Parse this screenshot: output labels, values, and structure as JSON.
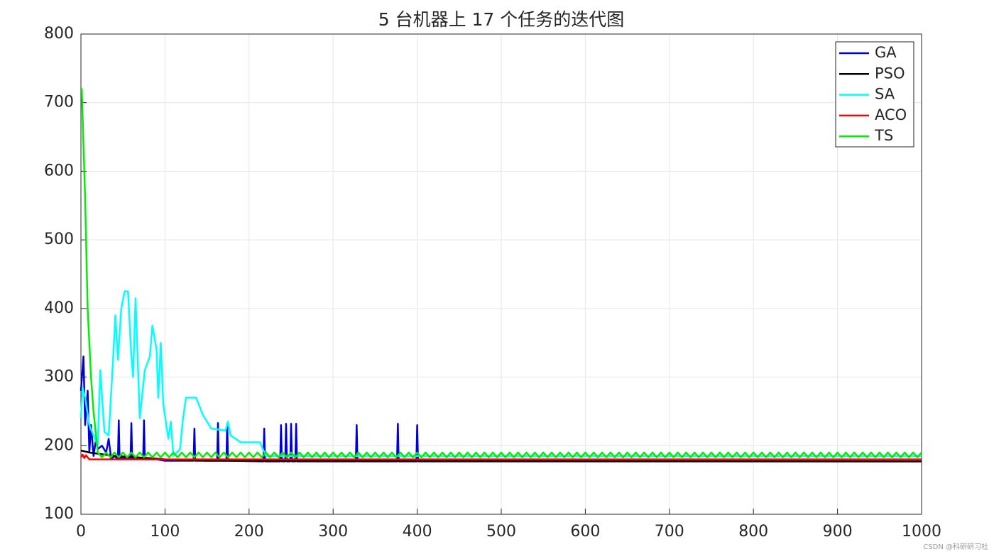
{
  "chart_data": {
    "type": "line",
    "title": "5 台机器上 17 个任务的迭代图",
    "xlim": [
      0,
      1000
    ],
    "xticks": [
      0,
      100,
      200,
      300,
      400,
      500,
      600,
      700,
      800,
      900,
      1000
    ],
    "ylim": [
      100,
      800
    ],
    "yticks": [
      100,
      200,
      300,
      400,
      500,
      600,
      700,
      800
    ],
    "grid": true,
    "legend": "top-right",
    "series": [
      {
        "name": "GA",
        "color": "#0000dd",
        "x": [
          0,
          3,
          5,
          8,
          10,
          12,
          15,
          18,
          20,
          25,
          30,
          33,
          36,
          40,
          44,
          45,
          46,
          55,
          59,
          60,
          61,
          70,
          74,
          75,
          76,
          90,
          100,
          134,
          135,
          136,
          162,
          163,
          164,
          173,
          174,
          175,
          217,
          218,
          219,
          237,
          238,
          239,
          243,
          244,
          245,
          249,
          250,
          251,
          255,
          256,
          257,
          327,
          328,
          329,
          376,
          377,
          378,
          399,
          400,
          401,
          1000
        ],
        "values": [
          280,
          330,
          230,
          280,
          190,
          230,
          185,
          210,
          195,
          200,
          190,
          210,
          180,
          185,
          180,
          237,
          182,
          182,
          180,
          233,
          180,
          182,
          180,
          237,
          180,
          180,
          178,
          178,
          225,
          178,
          178,
          233,
          178,
          178,
          232,
          178,
          177,
          225,
          177,
          177,
          230,
          177,
          177,
          232,
          177,
          177,
          232,
          177,
          177,
          232,
          177,
          177,
          230,
          177,
          177,
          232,
          177,
          177,
          230,
          177,
          177
        ]
      },
      {
        "name": "PSO",
        "color": "#000000",
        "x": [
          0,
          10,
          40,
          80,
          100,
          150,
          1000
        ],
        "values": [
          193,
          190,
          185,
          182,
          180,
          178,
          177
        ]
      },
      {
        "name": "SA",
        "color": "#00ffff",
        "x": [
          0,
          2,
          5,
          10,
          15,
          20,
          23,
          28,
          33,
          38,
          41,
          44,
          48,
          52,
          56,
          60,
          62,
          65,
          70,
          76,
          82,
          85,
          90,
          92,
          95,
          98,
          104,
          107,
          110,
          118,
          121,
          125,
          137,
          145,
          155,
          172,
          175,
          178,
          190,
          213,
          220,
          1000
        ],
        "values": [
          240,
          285,
          270,
          230,
          215,
          200,
          310,
          220,
          215,
          320,
          390,
          325,
          400,
          425,
          425,
          330,
          300,
          415,
          240,
          310,
          330,
          375,
          340,
          270,
          350,
          260,
          210,
          235,
          185,
          195,
          235,
          270,
          270,
          245,
          225,
          222,
          235,
          215,
          205,
          205,
          185,
          185
        ]
      },
      {
        "name": "ACO",
        "color": "#ff0000",
        "x": [
          0,
          2,
          4,
          6,
          10,
          1000
        ],
        "values": [
          183,
          187,
          182,
          186,
          180,
          180
        ]
      },
      {
        "name": "TS",
        "color": "#00ee00",
        "x": [
          0,
          1,
          5,
          8,
          12,
          15,
          20,
          25,
          30,
          35,
          40,
          45,
          50,
          55,
          60,
          65,
          70,
          75,
          80,
          85,
          90,
          95,
          100,
          105,
          110,
          115,
          120,
          125,
          130,
          135,
          140,
          145,
          150,
          155,
          160,
          165,
          170,
          175,
          180,
          185,
          190,
          195,
          200,
          205,
          210,
          215,
          220,
          225,
          230,
          235,
          240,
          245,
          250,
          255,
          260,
          265,
          270,
          275,
          280,
          285,
          290,
          295,
          300,
          305,
          310,
          315,
          320,
          325,
          330,
          335,
          340,
          345,
          350,
          355,
          360,
          365,
          370,
          375,
          380,
          385,
          390,
          395,
          400,
          405,
          410,
          415,
          420,
          425,
          430,
          435,
          440,
          445,
          450,
          455,
          460,
          465,
          470,
          475,
          480,
          485,
          490,
          495,
          500,
          505,
          510,
          515,
          520,
          525,
          530,
          535,
          540,
          545,
          550,
          555,
          560,
          565,
          570,
          575,
          580,
          585,
          590,
          595,
          600,
          605,
          610,
          615,
          620,
          625,
          630,
          635,
          640,
          645,
          650,
          655,
          660,
          665,
          670,
          675,
          680,
          685,
          690,
          695,
          700,
          705,
          710,
          715,
          720,
          725,
          730,
          735,
          740,
          745,
          750,
          755,
          760,
          765,
          770,
          775,
          780,
          785,
          790,
          795,
          800,
          805,
          810,
          815,
          820,
          825,
          830,
          835,
          840,
          845,
          850,
          855,
          860,
          865,
          870,
          875,
          880,
          885,
          890,
          895,
          900,
          905,
          910,
          915,
          920,
          925,
          930,
          935,
          940,
          945,
          950,
          955,
          960,
          965,
          970,
          975,
          980,
          985,
          990,
          995,
          1000
        ],
        "values": [
          720,
          720,
          560,
          400,
          300,
          250,
          190,
          183,
          190,
          183,
          190,
          183,
          190,
          183,
          190,
          183,
          190,
          183,
          190,
          183,
          190,
          183,
          190,
          183,
          190,
          183,
          190,
          183,
          190,
          183,
          190,
          183,
          190,
          183,
          190,
          183,
          190,
          183,
          190,
          183,
          190,
          183,
          190,
          183,
          190,
          183,
          190,
          183,
          190,
          183,
          190,
          183,
          190,
          183,
          190,
          183,
          190,
          183,
          190,
          183,
          190,
          183,
          190,
          183,
          190,
          183,
          190,
          183,
          190,
          183,
          190,
          183,
          190,
          183,
          190,
          183,
          190,
          183,
          190,
          183,
          190,
          183,
          190,
          183,
          190,
          183,
          190,
          183,
          190,
          183,
          190,
          183,
          190,
          183,
          190,
          183,
          190,
          183,
          190,
          183,
          190,
          183,
          190,
          183,
          190,
          183,
          190,
          183,
          190,
          183,
          190,
          183,
          190,
          183,
          190,
          183,
          190,
          183,
          190,
          183,
          190,
          183,
          190,
          183,
          190,
          183,
          190,
          183,
          190,
          183,
          190,
          183,
          190,
          183,
          190,
          183,
          190,
          183,
          190,
          183,
          190,
          183,
          190,
          183,
          190,
          183,
          190,
          183,
          190,
          183,
          190,
          183,
          190,
          183,
          190,
          183,
          190,
          183,
          190,
          183,
          190,
          183,
          190,
          183,
          190,
          183,
          190,
          183,
          190,
          183,
          190,
          183,
          190,
          183,
          190,
          183,
          190,
          183,
          190,
          183,
          190,
          183,
          190,
          183,
          190,
          183,
          190,
          183,
          190,
          183,
          190,
          183,
          190,
          183,
          190,
          183,
          190,
          183,
          190,
          183,
          190,
          183,
          190
        ]
      }
    ]
  },
  "watermark": "CSDN @科研研习社"
}
